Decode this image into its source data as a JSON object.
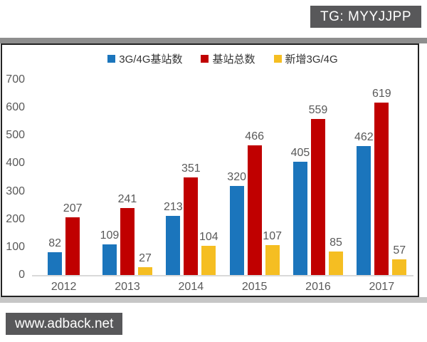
{
  "watermarks": {
    "tg_badge": "TG: MYYJJPP",
    "adback_badge": "www.adback.net",
    "badge_bg": "#58585A",
    "badge_text_color": "#ffffff"
  },
  "frame": {
    "border_color": "#232323",
    "top_band_color": "#8E8E8E",
    "bottom_band_color": "#C6C6C6"
  },
  "chart_data": {
    "type": "bar",
    "title": "",
    "xlabel": "",
    "ylabel": "",
    "categories": [
      "2012",
      "2013",
      "2014",
      "2015",
      "2016",
      "2017"
    ],
    "series": [
      {
        "name": "3G/4G基站数",
        "color": "#1B75BC",
        "values": [
          82,
          109,
          213,
          320,
          405,
          462
        ]
      },
      {
        "name": "基站总数",
        "color": "#C00000",
        "values": [
          207,
          241,
          351,
          466,
          559,
          619
        ]
      },
      {
        "name": "新增3G/4G",
        "color": "#F5BE22",
        "values": [
          null,
          27,
          104,
          107,
          85,
          57
        ]
      }
    ],
    "ylim": [
      0,
      700
    ],
    "yticks": [
      0,
      100,
      200,
      300,
      400,
      500,
      600,
      700
    ],
    "legend_position": "top-center",
    "grid": false,
    "value_labels": true,
    "axis_text_color": "#595959",
    "legend_text_color": "#333333",
    "baseline_color": "#D9D9D9"
  }
}
